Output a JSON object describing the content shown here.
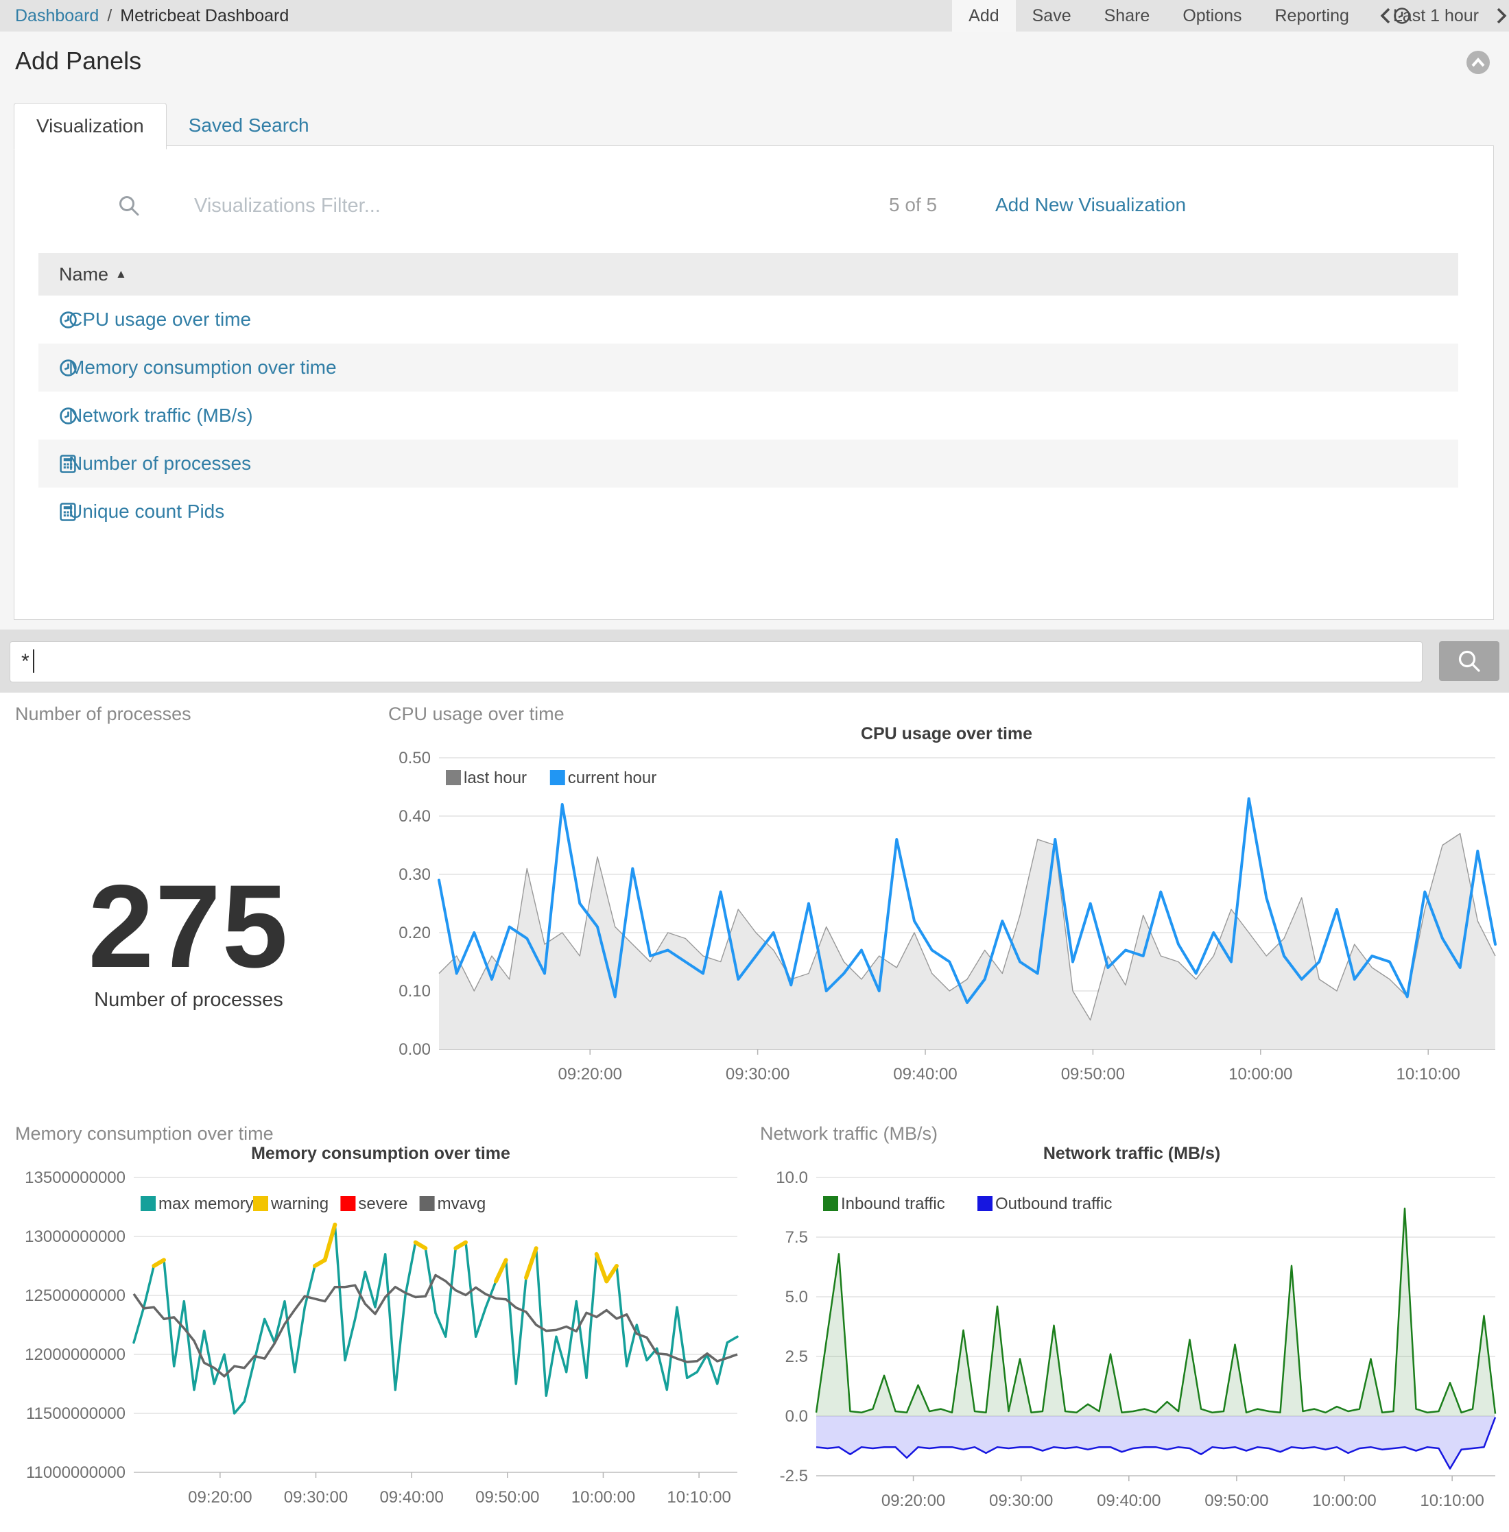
{
  "topnav": {
    "breadcrumb": {
      "root": "Dashboard",
      "separator": "/",
      "current": "Metricbeat Dashboard"
    },
    "menu": [
      "Add",
      "Save",
      "Share",
      "Options",
      "Reporting"
    ],
    "timepicker": {
      "label": "Last 1 hour"
    }
  },
  "add_panels": {
    "title": "Add Panels",
    "tabs": [
      {
        "label": "Visualization"
      },
      {
        "label": "Saved Search"
      }
    ],
    "filter_placeholder": "Visualizations Filter...",
    "count": "5 of 5",
    "add_new": "Add New Visualization",
    "table": {
      "header": "Name",
      "sort_icon": "▲",
      "rows": [
        {
          "label": "CPU usage over time",
          "icon": "clock"
        },
        {
          "label": "Memory consumption over time",
          "icon": "clock"
        },
        {
          "label": "Network traffic (MB/s)",
          "icon": "clock"
        },
        {
          "label": "Number of processes",
          "icon": "calculator"
        },
        {
          "label": "Unique count Pids",
          "icon": "calculator"
        }
      ]
    }
  },
  "query_bar": {
    "value": "*"
  },
  "panels": {
    "processes": {
      "title": "Number of processes",
      "value": "275",
      "label": "Number of processes"
    },
    "cpu": {
      "title": "CPU usage over time"
    },
    "memory": {
      "title": "Memory consumption over time"
    },
    "network": {
      "title": "Network traffic (MB/s)"
    }
  },
  "accent_colors": {
    "link_teal": "#317ea6",
    "cpu_blue": "#2196f3",
    "memory_teal": "#15a09a",
    "warning_yellow": "#f3c400",
    "severe_red": "#ff0000",
    "inbound_green": "#1b7e1b",
    "outbound_blue": "#1616e0"
  },
  "chart_data": [
    {
      "type": "line",
      "title": "CPU usage over time",
      "ylim": [
        0,
        0.5
      ],
      "yticks": [
        "0.50",
        "0.40",
        "0.30",
        "0.20",
        "0.10",
        "0.00"
      ],
      "xticks": [
        "09:20:00",
        "09:30:00",
        "09:40:00",
        "09:50:00",
        "10:00:00",
        "10:10:00"
      ],
      "legend": [
        {
          "label": "last hour",
          "color": "#808080"
        },
        {
          "label": "current hour",
          "color": "#2196f3"
        }
      ],
      "series": [
        {
          "name": "last hour",
          "type": "area",
          "color": "#999999",
          "width": 1.4,
          "fill": "#e9e9e9",
          "values": [
            0.13,
            0.16,
            0.1,
            0.16,
            0.12,
            0.31,
            0.18,
            0.2,
            0.16,
            0.33,
            0.21,
            0.18,
            0.15,
            0.2,
            0.19,
            0.16,
            0.15,
            0.24,
            0.2,
            0.17,
            0.12,
            0.13,
            0.21,
            0.15,
            0.12,
            0.16,
            0.14,
            0.2,
            0.13,
            0.1,
            0.12,
            0.17,
            0.13,
            0.23,
            0.36,
            0.35,
            0.1,
            0.05,
            0.16,
            0.11,
            0.23,
            0.16,
            0.15,
            0.12,
            0.16,
            0.24,
            0.2,
            0.16,
            0.19,
            0.26,
            0.12,
            0.1,
            0.18,
            0.14,
            0.12,
            0.09,
            0.24,
            0.35,
            0.37,
            0.22,
            0.16
          ]
        },
        {
          "name": "current hour",
          "type": "line",
          "color": "#2196f3",
          "width": 4,
          "values": [
            0.29,
            0.13,
            0.2,
            0.12,
            0.21,
            0.19,
            0.13,
            0.42,
            0.25,
            0.21,
            0.09,
            0.31,
            0.16,
            0.17,
            0.15,
            0.13,
            0.27,
            0.12,
            0.16,
            0.2,
            0.11,
            0.25,
            0.1,
            0.13,
            0.17,
            0.1,
            0.36,
            0.22,
            0.17,
            0.15,
            0.08,
            0.12,
            0.22,
            0.15,
            0.13,
            0.36,
            0.15,
            0.25,
            0.14,
            0.17,
            0.16,
            0.27,
            0.18,
            0.13,
            0.2,
            0.15,
            0.43,
            0.26,
            0.16,
            0.12,
            0.15,
            0.24,
            0.12,
            0.16,
            0.15,
            0.09,
            0.27,
            0.19,
            0.14,
            0.34,
            0.18
          ]
        }
      ]
    },
    {
      "type": "line",
      "title": "Memory consumption over time",
      "value_unit": "bytes",
      "value_scale": 1000000000,
      "ylim": [
        11,
        13.5
      ],
      "yticks": [
        "13500000000",
        "13000000000",
        "12500000000",
        "12000000000",
        "11500000000",
        "11000000000"
      ],
      "xticks": [
        "09:20:00",
        "09:30:00",
        "09:40:00",
        "09:50:00",
        "10:00:00",
        "10:10:00"
      ],
      "legend": [
        {
          "label": "max memory",
          "color": "#15a09a"
        },
        {
          "label": "warning",
          "color": "#f3c400"
        },
        {
          "label": "severe",
          "color": "#ff0000"
        },
        {
          "label": "mvavg",
          "color": "#666666"
        }
      ],
      "series": [
        {
          "name": "max memory",
          "type": "line",
          "color": "#15a09a",
          "width": 3.5,
          "values": [
            12.1,
            12.4,
            12.75,
            12.8,
            11.9,
            12.45,
            11.7,
            12.2,
            11.75,
            12.0,
            11.5,
            11.6,
            11.95,
            12.3,
            12.1,
            12.45,
            11.85,
            12.4,
            12.75,
            12.8,
            13.1,
            11.95,
            12.3,
            12.7,
            12.4,
            12.85,
            11.7,
            12.5,
            12.95,
            12.9,
            12.35,
            12.15,
            12.9,
            12.95,
            12.15,
            12.4,
            12.62,
            12.8,
            11.75,
            12.65,
            12.9,
            11.65,
            12.15,
            11.85,
            12.45,
            11.8,
            12.85,
            12.62,
            12.75,
            11.9,
            12.25,
            11.95,
            12.05,
            11.7,
            12.4,
            11.8,
            11.85,
            12.0,
            11.75,
            12.1,
            12.15
          ]
        },
        {
          "name": "warning",
          "type": "threshold",
          "source": "max memory",
          "threshold": 12.6,
          "color": "#f3c400",
          "width": 6
        },
        {
          "name": "severe",
          "type": "threshold",
          "source": "max memory",
          "threshold": 13.2,
          "color": "#ff0000",
          "width": 6
        },
        {
          "name": "mvavg",
          "type": "mvavg",
          "source": "max memory",
          "window": 7,
          "color": "#666666",
          "width": 3.5
        }
      ]
    },
    {
      "type": "area",
      "title": "Network traffic (MB/s)",
      "ylim": [
        -2.5,
        10
      ],
      "yticks": [
        "10.0",
        "7.5",
        "5.0",
        "2.5",
        "0.0",
        "-2.5"
      ],
      "xticks": [
        "09:20:00",
        "09:30:00",
        "09:40:00",
        "09:50:00",
        "10:00:00",
        "10:10:00"
      ],
      "legend": [
        {
          "label": "Inbound traffic",
          "color": "#1b7e1b"
        },
        {
          "label": "Outbound traffic",
          "color": "#1616e0"
        }
      ],
      "series": [
        {
          "name": "Inbound traffic",
          "type": "area",
          "color": "#1b7e1b",
          "width": 2.5,
          "fill": "rgba(46,125,50,0.15)",
          "values": [
            0.15,
            3.5,
            6.8,
            0.2,
            0.15,
            0.3,
            1.7,
            0.2,
            0.15,
            1.3,
            0.2,
            0.3,
            0.15,
            3.6,
            0.2,
            0.15,
            4.6,
            0.2,
            2.4,
            0.15,
            0.2,
            3.8,
            0.2,
            0.15,
            0.5,
            0.2,
            2.6,
            0.15,
            0.2,
            0.3,
            0.15,
            0.6,
            0.2,
            3.2,
            0.3,
            0.15,
            0.2,
            3.0,
            0.15,
            0.3,
            0.2,
            0.15,
            6.3,
            0.2,
            0.3,
            0.15,
            0.4,
            0.2,
            0.3,
            2.4,
            0.15,
            0.2,
            8.7,
            0.3,
            0.15,
            0.2,
            1.4,
            0.15,
            0.3,
            4.2,
            0.1
          ]
        },
        {
          "name": "Outbound traffic",
          "type": "area",
          "color": "#1616e0",
          "width": 2.5,
          "fill": "rgba(80,80,240,0.22)",
          "values": [
            -1.3,
            -1.35,
            -1.3,
            -1.6,
            -1.3,
            -1.35,
            -1.3,
            -1.3,
            -1.75,
            -1.3,
            -1.35,
            -1.3,
            -1.3,
            -1.4,
            -1.3,
            -1.55,
            -1.3,
            -1.35,
            -1.3,
            -1.3,
            -1.45,
            -1.3,
            -1.35,
            -1.3,
            -1.4,
            -1.3,
            -1.3,
            -1.5,
            -1.35,
            -1.3,
            -1.3,
            -1.4,
            -1.3,
            -1.35,
            -1.6,
            -1.3,
            -1.35,
            -1.3,
            -1.45,
            -1.3,
            -1.35,
            -1.5,
            -1.3,
            -1.35,
            -1.3,
            -1.4,
            -1.3,
            -1.55,
            -1.35,
            -1.3,
            -1.4,
            -1.35,
            -1.3,
            -1.45,
            -1.3,
            -1.35,
            -2.2,
            -1.4,
            -1.35,
            -1.3,
            -0.05
          ]
        }
      ]
    }
  ]
}
